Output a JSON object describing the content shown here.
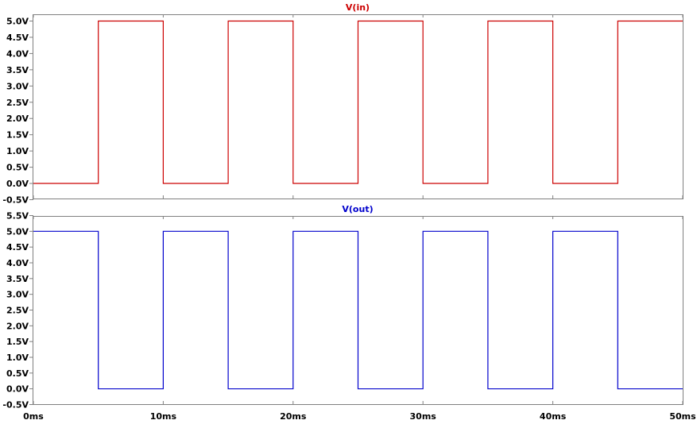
{
  "chart_data": [
    {
      "type": "line",
      "step": true,
      "title": "V(in)",
      "color": "#cc0000",
      "x_unit": "ms",
      "y_unit": "V",
      "xlim": [
        0,
        50
      ],
      "ylim": [
        -0.5,
        5.0
      ],
      "y_ticks": [
        "5.0V",
        "4.5V",
        "4.0V",
        "3.5V",
        "3.0V",
        "2.5V",
        "2.0V",
        "1.5V",
        "1.0V",
        "0.5V",
        "0.0V",
        "-0.5V"
      ],
      "series": [
        {
          "name": "V(in)",
          "x": [
            0,
            5,
            5,
            10,
            10,
            15,
            15,
            20,
            20,
            25,
            25,
            30,
            30,
            35,
            35,
            40,
            40,
            45,
            45,
            50
          ],
          "y": [
            0,
            0,
            5,
            5,
            0,
            0,
            5,
            5,
            0,
            0,
            5,
            5,
            0,
            0,
            5,
            5,
            0,
            0,
            5,
            5
          ]
        }
      ]
    },
    {
      "type": "line",
      "step": true,
      "title": "V(out)",
      "color": "#0000cc",
      "x_unit": "ms",
      "y_unit": "V",
      "xlim": [
        0,
        50
      ],
      "ylim": [
        -0.5,
        5.5
      ],
      "y_ticks": [
        "5.5V",
        "5.0V",
        "4.5V",
        "4.0V",
        "3.5V",
        "3.0V",
        "2.5V",
        "2.0V",
        "1.5V",
        "1.0V",
        "0.5V",
        "0.0V",
        "-0.5V"
      ],
      "x_ticks": [
        "0ms",
        "10ms",
        "20ms",
        "30ms",
        "40ms",
        "50ms"
      ],
      "series": [
        {
          "name": "V(out)",
          "x": [
            0,
            5,
            5,
            10,
            10,
            15,
            15,
            20,
            20,
            25,
            25,
            30,
            30,
            35,
            35,
            40,
            40,
            45,
            45,
            50
          ],
          "y": [
            5,
            5,
            0,
            0,
            5,
            5,
            0,
            0,
            5,
            5,
            0,
            0,
            5,
            5,
            0,
            0,
            5,
            5,
            0,
            0
          ]
        }
      ]
    }
  ]
}
